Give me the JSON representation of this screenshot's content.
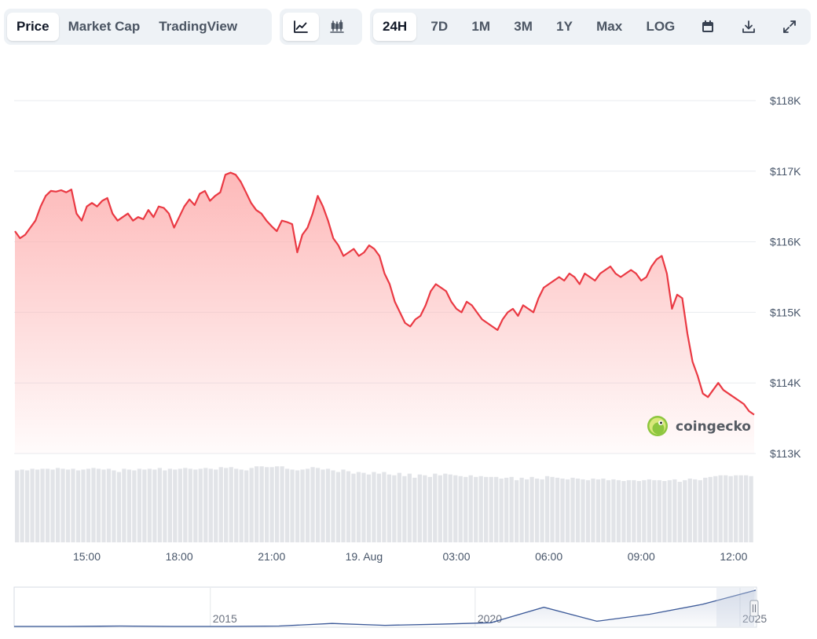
{
  "toolbar": {
    "view_tabs": [
      "Price",
      "Market Cap",
      "TradingView"
    ],
    "active_view": "Price",
    "chart_type_icons": [
      "line-chart-icon",
      "candlestick-icon"
    ],
    "active_chart_type": "line-chart-icon",
    "ranges": [
      "24H",
      "7D",
      "1M",
      "3M",
      "1Y",
      "Max",
      "LOG"
    ],
    "active_range": "24H",
    "action_icons": [
      "calendar-icon",
      "download-icon",
      "expand-icon"
    ]
  },
  "watermark": "coingecko",
  "colors": {
    "line": "#ea3943",
    "area_top": "#fdb5b5",
    "volume": "#e2e4e8",
    "navigator": "#3b5998"
  },
  "chart_data": {
    "type": "line",
    "price": {
      "x": [
        "12:40",
        "12:50",
        "13:00",
        "13:10",
        "13:20",
        "13:30",
        "13:40",
        "13:50",
        "14:00",
        "14:10",
        "14:20",
        "14:30",
        "14:40",
        "14:50",
        "15:00",
        "15:10",
        "15:20",
        "15:30",
        "15:40",
        "15:50",
        "16:00",
        "16:10",
        "16:20",
        "16:30",
        "16:40",
        "16:50",
        "17:00",
        "17:10",
        "17:20",
        "17:30",
        "17:40",
        "17:50",
        "18:00",
        "18:10",
        "18:20",
        "18:30",
        "18:40",
        "18:50",
        "19:00",
        "19:10",
        "19:20",
        "19:30",
        "19:40",
        "19:50",
        "20:00",
        "20:10",
        "20:20",
        "20:30",
        "20:40",
        "20:50",
        "21:00",
        "21:10",
        "21:20",
        "21:30",
        "21:40",
        "21:50",
        "22:00",
        "22:10",
        "22:20",
        "22:30",
        "22:40",
        "22:50",
        "23:00",
        "23:10",
        "23:20",
        "23:30",
        "23:40",
        "23:50",
        "00:00",
        "00:10",
        "00:20",
        "00:30",
        "00:40",
        "00:50",
        "01:00",
        "01:10",
        "01:20",
        "01:30",
        "01:40",
        "01:50",
        "02:00",
        "02:10",
        "02:20",
        "02:30",
        "02:40",
        "02:50",
        "03:00",
        "03:10",
        "03:20",
        "03:30",
        "03:40",
        "03:50",
        "04:00",
        "04:10",
        "04:20",
        "04:30",
        "04:40",
        "04:50",
        "05:00",
        "05:10",
        "05:20",
        "05:30",
        "05:40",
        "05:50",
        "06:00",
        "06:10",
        "06:20",
        "06:30",
        "06:40",
        "06:50",
        "07:00",
        "07:10",
        "07:20",
        "07:30",
        "07:40",
        "07:50",
        "08:00",
        "08:10",
        "08:20",
        "08:30",
        "08:40",
        "08:50",
        "09:00",
        "09:10",
        "09:20",
        "09:30",
        "09:40",
        "09:50",
        "10:00",
        "10:10",
        "10:20",
        "10:30",
        "10:40",
        "10:50",
        "11:00",
        "11:10",
        "11:20",
        "11:30",
        "11:40",
        "11:50",
        "12:00",
        "12:10",
        "12:20",
        "12:30",
        "12:40"
      ],
      "values": [
        116150,
        116050,
        116100,
        116200,
        116300,
        116500,
        116650,
        116720,
        116710,
        116730,
        116700,
        116740,
        116400,
        116300,
        116500,
        116550,
        116500,
        116580,
        116620,
        116400,
        116300,
        116350,
        116400,
        116300,
        116350,
        116320,
        116450,
        116350,
        116500,
        116480,
        116400,
        116200,
        116350,
        116500,
        116600,
        116520,
        116680,
        116720,
        116580,
        116650,
        116700,
        116950,
        116980,
        116950,
        116850,
        116700,
        116550,
        116450,
        116400,
        116300,
        116220,
        116150,
        116300,
        116280,
        116250,
        115850,
        116100,
        116200,
        116400,
        116650,
        116500,
        116300,
        116050,
        115950,
        115800,
        115850,
        115900,
        115800,
        115850,
        115950,
        115900,
        115800,
        115550,
        115400,
        115150,
        115000,
        114850,
        114800,
        114900,
        114950,
        115100,
        115300,
        115400,
        115350,
        115300,
        115150,
        115050,
        115000,
        115150,
        115100,
        115000,
        114900,
        114850,
        114800,
        114750,
        114900,
        115000,
        115050,
        114950,
        115100,
        115050,
        115000,
        115200,
        115350,
        115400,
        115450,
        115500,
        115450,
        115550,
        115500,
        115400,
        115550,
        115500,
        115450,
        115550,
        115600,
        115650,
        115550,
        115500,
        115550,
        115600,
        115550,
        115450,
        115500,
        115650,
        115750,
        115800,
        115550,
        115050,
        115250,
        115200,
        114700,
        114300,
        114100,
        113850,
        113800,
        113900,
        114000,
        113900,
        113850,
        113800,
        113750,
        113700,
        113600,
        113550
      ],
      "ylim": [
        113000,
        118000
      ],
      "y_ticks": [
        "$113K",
        "$114K",
        "$115K",
        "$116K",
        "$117K",
        "$118K"
      ],
      "y_tick_values": [
        113000,
        114000,
        115000,
        116000,
        117000,
        118000
      ],
      "x_ticks": [
        "15:00",
        "18:00",
        "21:00",
        "19. Aug",
        "03:00",
        "06:00",
        "09:00",
        "12:00"
      ],
      "x_tick_values": [
        "15:00",
        "18:00",
        "21:00",
        "00:00",
        "03:00",
        "06:00",
        "09:00",
        "12:00"
      ],
      "grid": true
    },
    "volume": {
      "type": "bar",
      "relative_values": [
        0.88,
        0.89,
        0.88,
        0.9,
        0.89,
        0.9,
        0.9,
        0.89,
        0.91,
        0.9,
        0.89,
        0.9,
        0.88,
        0.89,
        0.9,
        0.91,
        0.9,
        0.89,
        0.9,
        0.88,
        0.86,
        0.9,
        0.89,
        0.88,
        0.9,
        0.89,
        0.9,
        0.89,
        0.91,
        0.88,
        0.9,
        0.89,
        0.9,
        0.91,
        0.9,
        0.89,
        0.9,
        0.91,
        0.9,
        0.89,
        0.92,
        0.91,
        0.92,
        0.9,
        0.89,
        0.88,
        0.91,
        0.93,
        0.93,
        0.92,
        0.92,
        0.93,
        0.93,
        0.9,
        0.89,
        0.88,
        0.89,
        0.9,
        0.92,
        0.91,
        0.89,
        0.9,
        0.88,
        0.86,
        0.89,
        0.87,
        0.84,
        0.86,
        0.85,
        0.83,
        0.86,
        0.84,
        0.86,
        0.83,
        0.82,
        0.85,
        0.81,
        0.84,
        0.79,
        0.83,
        0.82,
        0.8,
        0.84,
        0.82,
        0.84,
        0.83,
        0.82,
        0.81,
        0.8,
        0.82,
        0.8,
        0.81,
        0.8,
        0.8,
        0.8,
        0.78,
        0.79,
        0.8,
        0.76,
        0.79,
        0.77,
        0.8,
        0.78,
        0.77,
        0.81,
        0.8,
        0.79,
        0.78,
        0.77,
        0.79,
        0.78,
        0.77,
        0.76,
        0.78,
        0.77,
        0.78,
        0.76,
        0.77,
        0.76,
        0.75,
        0.76,
        0.76,
        0.75,
        0.76,
        0.77,
        0.76,
        0.76,
        0.75,
        0.76,
        0.77,
        0.74,
        0.76,
        0.78,
        0.77,
        0.76,
        0.79,
        0.8,
        0.81,
        0.82,
        0.82,
        0.81,
        0.82,
        0.82,
        0.82,
        0.81
      ]
    },
    "navigator": {
      "type": "area",
      "x": [
        2011,
        2012,
        2013,
        2014,
        2015,
        2016,
        2017,
        2018,
        2019,
        2020,
        2021,
        2022,
        2023,
        2024,
        2025
      ],
      "values": [
        0.0,
        0.0,
        0.01,
        0.0,
        0.0,
        0.01,
        0.08,
        0.03,
        0.06,
        0.1,
        0.52,
        0.14,
        0.33,
        0.6,
        0.98
      ],
      "x_ticks": [
        "2015",
        "2020",
        "2025"
      ]
    }
  }
}
